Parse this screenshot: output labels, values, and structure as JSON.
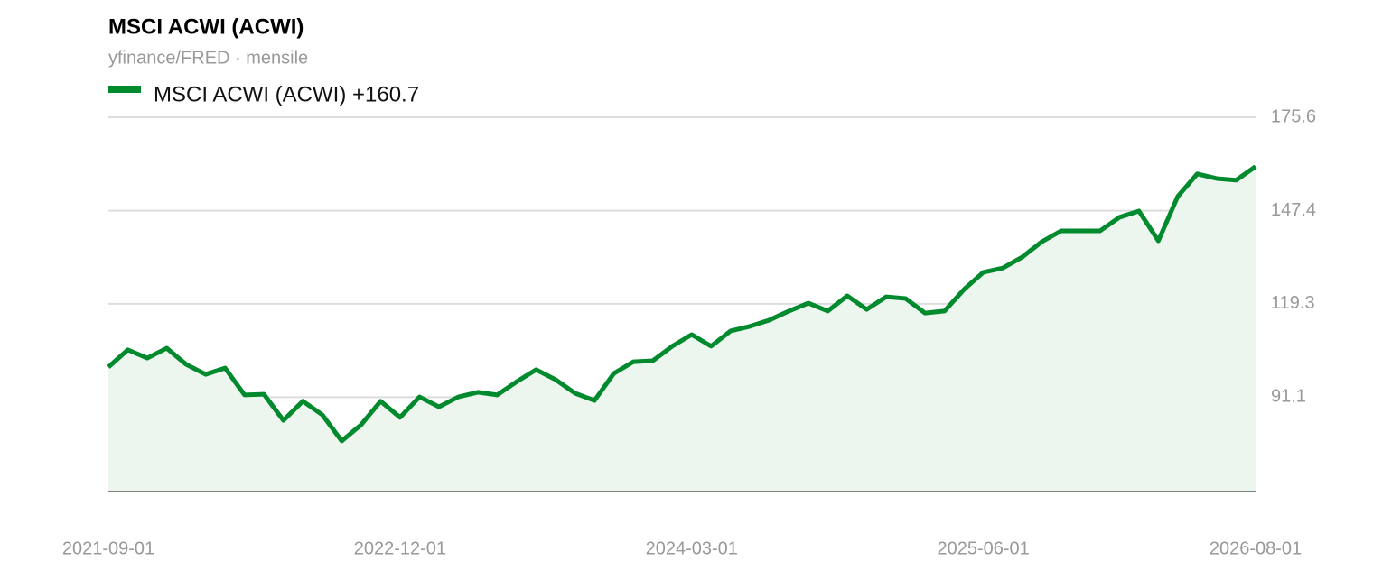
{
  "chart_data": {
    "type": "line",
    "title": "MSCI ACWI (ACWI)",
    "subtitle": "yfinance/FRED · mensile",
    "x": [
      "2021-09-01",
      "2021-10-01",
      "2021-11-01",
      "2021-12-01",
      "2022-01-01",
      "2022-02-01",
      "2022-03-01",
      "2022-04-01",
      "2022-05-01",
      "2022-06-01",
      "2022-07-01",
      "2022-08-01",
      "2022-09-01",
      "2022-10-01",
      "2022-11-01",
      "2022-12-01",
      "2023-01-01",
      "2023-02-01",
      "2023-03-01",
      "2023-04-01",
      "2023-05-01",
      "2023-06-01",
      "2023-07-01",
      "2023-08-01",
      "2023-09-01",
      "2023-10-01",
      "2023-11-01",
      "2023-12-01",
      "2024-01-01",
      "2024-02-01",
      "2024-03-01",
      "2024-04-01",
      "2024-05-01",
      "2024-06-01",
      "2024-07-01",
      "2024-08-01",
      "2024-09-01",
      "2024-10-01",
      "2024-11-01",
      "2024-12-01",
      "2025-01-01",
      "2025-02-01",
      "2025-03-01",
      "2025-04-01",
      "2025-05-01",
      "2025-06-01",
      "2025-07-01",
      "2025-08-01",
      "2025-09-01",
      "2025-10-01",
      "2025-11-01",
      "2025-12-01",
      "2026-01-01",
      "2026-02-01",
      "2026-03-01",
      "2026-04-01",
      "2026-05-01",
      "2026-06-01",
      "2026-07-01",
      "2026-08-01"
    ],
    "series": [
      {
        "name": "MSCI ACWI (ACWI) +160.7",
        "color": "#008a2e",
        "area_color": "#edf6ee",
        "values": [
          100.2,
          105.4,
          102.9,
          105.9,
          101.0,
          98.0,
          99.9,
          91.8,
          92.0,
          84.1,
          89.9,
          85.8,
          77.9,
          82.8,
          89.9,
          85.0,
          91.2,
          88.2,
          91.2,
          92.6,
          91.8,
          95.8,
          99.4,
          96.4,
          92.3,
          90.1,
          98.3,
          101.8,
          102.1,
          106.5,
          110.0,
          106.5,
          111.1,
          112.5,
          114.4,
          117.1,
          119.5,
          117.1,
          121.7,
          117.6,
          121.4,
          120.9,
          116.5,
          117.1,
          123.6,
          128.8,
          130.1,
          133.4,
          138.0,
          141.3,
          141.3,
          141.3,
          145.4,
          147.3,
          138.3,
          151.7,
          158.5,
          157.1,
          156.6,
          160.7
        ]
      }
    ],
    "xticks": [
      "2021-09-01",
      "2022-12-01",
      "2024-03-01",
      "2025-06-01",
      "2026-08-01"
    ],
    "ylim": [
      62.9,
      175.6
    ],
    "yticks": [
      91.1,
      119.3,
      147.4,
      175.6
    ],
    "grid": true
  }
}
